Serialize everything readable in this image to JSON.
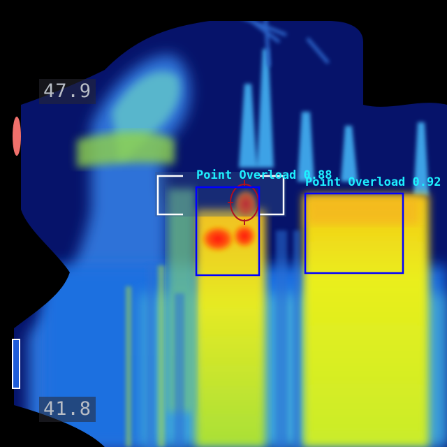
{
  "image": {
    "kind": "thermal-camera-frame",
    "palette": "jet-like (blue to red)",
    "temperature_scale": {
      "max_readout": "47.9",
      "min_readout": "41.8"
    }
  },
  "detections": [
    {
      "label": "Point Overload",
      "score": "0.88",
      "text": "Point Overload 0.88",
      "color": "#0000ff"
    },
    {
      "label": "Point Overload",
      "score": "0.92",
      "text": "Point Overload 0.92",
      "color": "#0000ff"
    }
  ],
  "colors": {
    "label_text": "#1ef0ff",
    "box": "#0000ff",
    "crosshair": "#ffffff",
    "hotspot_marker": "#b01020"
  },
  "icons": [
    "crosshair-bracket-icon",
    "hotspot-circle-icon",
    "scale-bar-icon"
  ]
}
